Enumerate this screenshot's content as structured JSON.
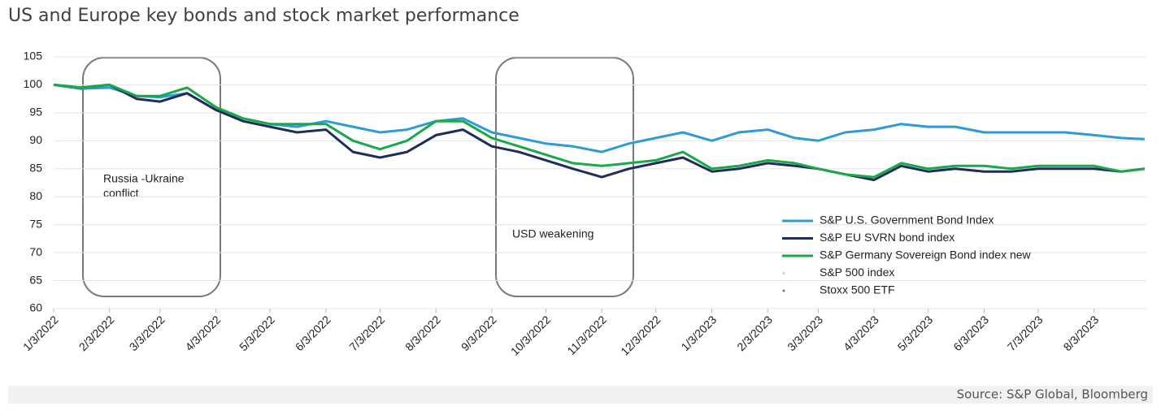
{
  "chart_data": {
    "type": "line",
    "title": "US and Europe key bonds and stock market performance",
    "source": "Source: S&P Global, Bloomberg",
    "annotations": [
      [
        "Russia -Ukraine",
        "conflict"
      ],
      "USD  weakening"
    ],
    "x": [
      "1/3/2022",
      "1/18/2022",
      "2/3/2022",
      "2/18/2022",
      "3/3/2022",
      "3/18/2022",
      "4/3/2022",
      "4/18/2022",
      "5/3/2022",
      "5/18/2022",
      "6/3/2022",
      "6/18/2022",
      "7/3/2022",
      "7/18/2022",
      "8/3/2022",
      "8/18/2022",
      "9/3/2022",
      "9/18/2022",
      "10/3/2022",
      "10/18/2022",
      "11/3/2022",
      "11/18/2022",
      "12/3/2022",
      "12/18/2022",
      "1/3/2023",
      "1/18/2023",
      "2/3/2023",
      "2/18/2023",
      "3/3/2023",
      "3/18/2023",
      "4/3/2023",
      "4/18/2023",
      "5/3/2023",
      "5/18/2023",
      "6/3/2023",
      "6/18/2023",
      "7/3/2023",
      "7/18/2023",
      "8/3/2023",
      "8/18/2023",
      "8/31/2023"
    ],
    "xlim": [
      "1/3/2022",
      "9/1/2023"
    ],
    "xticks": [
      "1/3/2022",
      "2/3/2022",
      "3/3/2022",
      "4/3/2022",
      "5/3/2022",
      "6/3/2022",
      "7/3/2022",
      "8/3/2022",
      "9/3/2022",
      "10/3/2022",
      "11/3/2022",
      "12/3/2022",
      "1/3/2023",
      "2/3/2023",
      "3/3/2023",
      "4/3/2023",
      "5/3/2023",
      "6/3/2023",
      "7/3/2023",
      "8/3/2023"
    ],
    "ylim": [
      60,
      105
    ],
    "yticks": [
      60,
      65,
      70,
      75,
      80,
      85,
      90,
      95,
      100,
      105
    ],
    "grid": true,
    "legend": "lower right",
    "series": [
      {
        "name": "S&P U.S. Government Bond Index",
        "color": "#2e9bd6",
        "values": [
          100,
          99.3,
          99.5,
          98,
          97.8,
          98.5,
          95.5,
          94,
          93,
          92.5,
          93.5,
          92.5,
          91.5,
          92,
          93.5,
          94,
          91.5,
          90.5,
          89.5,
          89,
          88,
          89.5,
          90.5,
          91.5,
          90,
          91.5,
          92,
          90.5,
          90,
          91.5,
          92,
          93,
          92.5,
          92.5,
          91.5,
          91.5,
          91.5,
          91.5,
          91,
          90.5,
          90.3
        ]
      },
      {
        "name": "S&P EU SVRN bond index",
        "color": "#1f2d5c",
        "values": [
          100,
          99.5,
          100,
          97.5,
          97,
          98.5,
          95.5,
          93.5,
          92.5,
          91.5,
          92,
          88,
          87,
          88,
          91,
          92,
          89,
          88,
          86.5,
          85,
          83.5,
          85,
          86,
          87,
          84.5,
          85,
          86,
          85.5,
          85,
          84,
          83,
          85.5,
          84.5,
          85,
          84.5,
          84.5,
          85,
          85,
          85,
          84.5,
          85
        ]
      },
      {
        "name": "S&P Germany Sovereign Bond index new",
        "color": "#19a84a",
        "values": [
          100,
          99.5,
          100,
          98,
          98,
          99.5,
          96,
          94,
          93,
          93,
          93,
          90,
          88.5,
          90,
          93.5,
          93.5,
          90.5,
          89,
          87.5,
          86,
          85.5,
          86,
          86.5,
          88,
          85,
          85.5,
          86.5,
          86,
          85,
          84,
          83.5,
          86,
          85,
          85.5,
          85.5,
          85,
          85.5,
          85.5,
          85.5,
          84.5,
          85
        ]
      },
      {
        "name": "S&P 500 index",
        "color": "#9fd3ef",
        "values": [
          null,
          null,
          null,
          null,
          null,
          null,
          null,
          null,
          null,
          null,
          null,
          null,
          null,
          null,
          null,
          null,
          null,
          null,
          null,
          null,
          null,
          null,
          null,
          null,
          null,
          null,
          null,
          null,
          null,
          null,
          null,
          null,
          null,
          null,
          null,
          null,
          null,
          null,
          null,
          null,
          null
        ]
      },
      {
        "name": "Stoxx 500 ETF",
        "color": "#6a7d8e",
        "values": [
          null,
          null,
          null,
          null,
          null,
          null,
          null,
          null,
          null,
          null,
          null,
          null,
          null,
          null,
          null,
          null,
          null,
          null,
          null,
          null,
          null,
          null,
          null,
          null,
          null,
          null,
          null,
          null,
          null,
          null,
          null,
          null,
          null,
          null,
          null,
          null,
          null,
          null,
          null,
          null,
          null
        ]
      }
    ]
  }
}
